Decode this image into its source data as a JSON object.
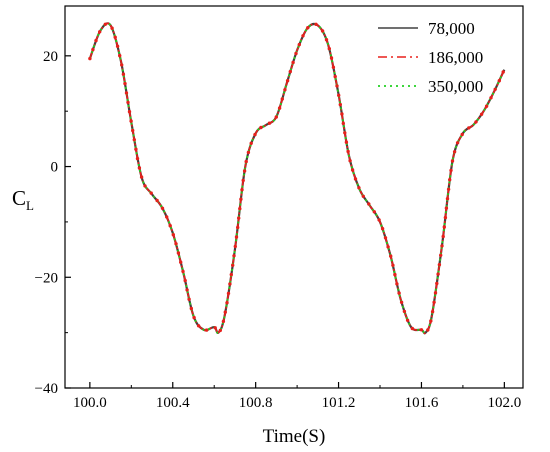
{
  "chart_data": {
    "type": "line",
    "xlabel": "Time(S)",
    "ylabel_main": "C",
    "ylabel_sub": "L",
    "xlim": [
      99.88,
      102.09
    ],
    "ylim": [
      -40,
      29
    ],
    "xticks": [
      100.0,
      100.4,
      100.8,
      101.2,
      101.6,
      102.0
    ],
    "xtick_labels": [
      "100.0",
      "100.4",
      "100.8",
      "101.2",
      "101.6",
      "102.0"
    ],
    "yticks": [
      20,
      0,
      -20,
      -40
    ],
    "ytick_labels": [
      "20",
      "0",
      "−20",
      "−40"
    ],
    "grid": false,
    "legend_position": "top-right",
    "colors": {
      "78,000": "#404040",
      "186,000": "#e8201c",
      "350,000": "#20d020"
    },
    "series": [
      {
        "name": "78,000",
        "style": "solid"
      },
      {
        "name": "186,000",
        "style": "dash-dot"
      },
      {
        "name": "350,000",
        "style": "dotted"
      }
    ],
    "x": [
      100.0,
      100.05,
      100.1,
      100.15,
      100.2,
      100.25,
      100.3,
      100.35,
      100.4,
      100.45,
      100.5,
      100.55,
      100.6,
      100.62,
      100.65,
      100.7,
      100.75,
      100.8,
      100.85,
      100.9,
      100.95,
      101.0,
      101.05,
      101.1,
      101.15,
      101.2,
      101.25,
      101.3,
      101.35,
      101.4,
      101.45,
      101.5,
      101.55,
      101.6,
      101.62,
      101.65,
      101.7,
      101.75,
      101.8,
      101.85,
      101.9,
      101.95,
      102.0
    ],
    "y": [
      19.5,
      24.5,
      25.5,
      19,
      8,
      -2,
      -5,
      -7.5,
      -12,
      -19,
      -27,
      -29.5,
      -29,
      -30,
      -27,
      -15,
      0,
      6,
      7.5,
      9,
      15,
      21,
      25,
      25.5,
      22,
      13,
      2,
      -4,
      -7,
      -10,
      -16,
      -24,
      -29,
      -29.5,
      -30,
      -27,
      -14,
      1,
      6,
      7.5,
      10,
      13.5,
      17.5
    ]
  }
}
